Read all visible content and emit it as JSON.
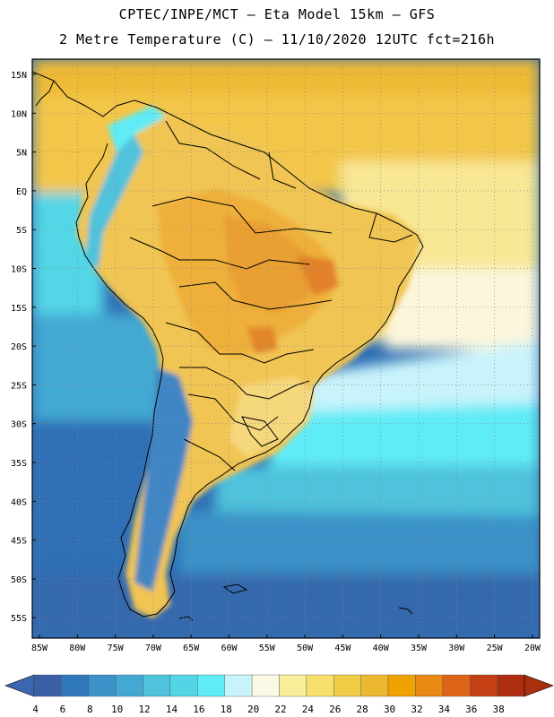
{
  "header": {
    "line1": "CPTEC/INPE/MCT –  Eta Model 15km – GFS",
    "line2": "2 Metre Temperature (C) – 11/10/2020 12UTC fct=216h"
  },
  "axes": {
    "lat_labels": [
      "15N",
      "10N",
      "5N",
      "EQ",
      "5S",
      "10S",
      "15S",
      "20S",
      "25S",
      "30S",
      "35S",
      "40S",
      "45S",
      "50S",
      "55S"
    ],
    "lon_labels": [
      "85W",
      "80W",
      "75W",
      "70W",
      "65W",
      "60W",
      "55W",
      "50W",
      "45W",
      "40W",
      "35W",
      "30W",
      "25W",
      "20W"
    ]
  },
  "colorbar": {
    "labels": [
      "4",
      "6",
      "8",
      "10",
      "12",
      "14",
      "16",
      "18",
      "20",
      "22",
      "24",
      "26",
      "28",
      "30",
      "32",
      "34",
      "36",
      "38"
    ],
    "colors": [
      "#3a5fa6",
      "#2f78b9",
      "#3a92c8",
      "#43a9d3",
      "#4fc2dc",
      "#52d6e6",
      "#5fecf6",
      "#c9f3fb",
      "#fbf8e6",
      "#f9ef9a",
      "#f6df6b",
      "#f0cc47",
      "#ecb82f",
      "#f0a200",
      "#e98913",
      "#de6417",
      "#c54014",
      "#ad2d10"
    ],
    "below_color": "#3b67b0",
    "above_color": "#a8300f"
  }
}
